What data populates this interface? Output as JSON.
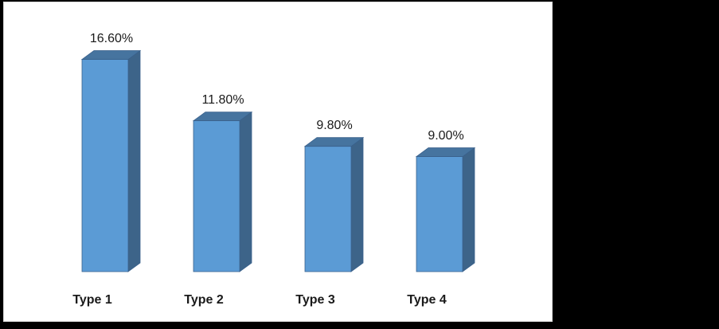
{
  "chart_data": {
    "type": "bar",
    "variant": "3d-column",
    "title": "",
    "xlabel": "",
    "ylabel": "",
    "categories": [
      "Type 1",
      "Type 2",
      "Type 3",
      "Type 4"
    ],
    "values": [
      16.6,
      11.8,
      9.8,
      9.0
    ],
    "data_labels": [
      "16.60%",
      "11.80%",
      "9.80%",
      "9.00%"
    ],
    "unit": "%",
    "ylim": [
      0,
      18
    ],
    "grid": false,
    "legend": "none",
    "axis_lines": "none",
    "colors": {
      "bar_front": "#5B9BD5",
      "bar_side": "#3D6489",
      "bar_top": "#46749F",
      "bar_edge": "#3A618C",
      "label_text": "#1A1A1A",
      "page_background": "#FFFFFF",
      "page_border": "#D6D6D6",
      "surround_background": "#000000"
    }
  }
}
